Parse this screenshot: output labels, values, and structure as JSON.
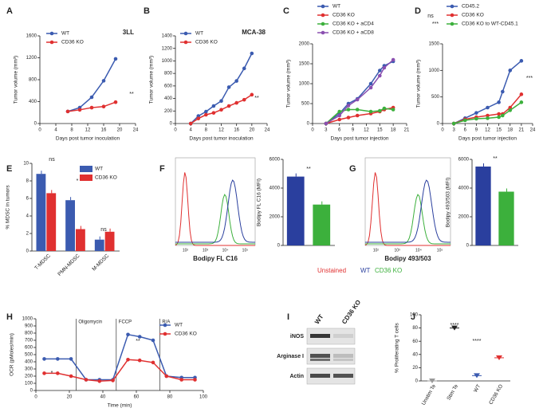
{
  "chart_data": [
    {
      "type": "line",
      "label": "A",
      "title": "3LL",
      "xlabel": "Days post tumor inoculation",
      "ylabel": "Tumor volume (mm³)",
      "x": [
        7,
        10,
        13,
        16,
        19
      ],
      "xlim": [
        0,
        24
      ],
      "xticks": [
        0,
        4,
        8,
        12,
        16,
        20,
        24
      ],
      "ylim": [
        0,
        1600
      ],
      "yticks": [
        0,
        400,
        800,
        1200,
        1600
      ],
      "series": [
        {
          "name": "WT",
          "color": "#3b5bb0",
          "values": [
            220,
            290,
            480,
            780,
            1180
          ]
        },
        {
          "name": "CD36 KO",
          "color": "#e03030",
          "values": [
            220,
            250,
            290,
            310,
            390
          ]
        }
      ],
      "annotations": [
        "**"
      ]
    },
    {
      "type": "line",
      "label": "B",
      "title": "MCA-38",
      "xlabel": "Days post tumor inoculation",
      "ylabel": "Tumor volume (mm³)",
      "x": [
        4,
        6,
        8,
        10,
        12,
        14,
        16,
        18,
        20
      ],
      "xlim": [
        0,
        24
      ],
      "xticks": [
        0,
        4,
        8,
        12,
        16,
        20,
        24
      ],
      "ylim": [
        0,
        1400
      ],
      "yticks": [
        0,
        200,
        400,
        600,
        800,
        1000,
        1200,
        1400
      ],
      "series": [
        {
          "name": "WT",
          "color": "#3b5bb0",
          "values": [
            0,
            120,
            190,
            280,
            360,
            580,
            680,
            880,
            1120
          ]
        },
        {
          "name": "CD36 KO",
          "color": "#e03030",
          "values": [
            0,
            80,
            140,
            170,
            220,
            280,
            330,
            380,
            460
          ]
        }
      ],
      "annotations": [
        "**"
      ]
    },
    {
      "type": "line",
      "label": "C",
      "xlabel": "Days post tumor injection",
      "ylabel": "Tumor volume (mm³)",
      "x": [
        3,
        6,
        8,
        10,
        13,
        15,
        16,
        18
      ],
      "xlim": [
        0,
        21
      ],
      "xticks": [
        0,
        3,
        6,
        9,
        12,
        15,
        18,
        21
      ],
      "ylim": [
        0,
        2000
      ],
      "yticks": [
        0,
        500,
        1000,
        1500,
        2000
      ],
      "series": [
        {
          "name": "WT",
          "color": "#3b5bb0",
          "values": [
            0,
            250,
            500,
            620,
            1000,
            1330,
            1450,
            1560
          ]
        },
        {
          "name": "CD36 KO",
          "color": "#e03030",
          "values": [
            0,
            100,
            150,
            200,
            250,
            300,
            350,
            400
          ]
        },
        {
          "name": "CD36 KO + aCD4",
          "color": "#3cb03c",
          "values": [
            0,
            300,
            350,
            350,
            300,
            320,
            380,
            350
          ]
        },
        {
          "name": "CD36 KO + aCD8",
          "color": "#8a4fb0",
          "values": [
            0,
            200,
            450,
            600,
            900,
            1200,
            1400,
            1600
          ]
        }
      ],
      "annotations": [
        "ns",
        "***"
      ]
    },
    {
      "type": "line",
      "label": "D",
      "xlabel": "Days post tumor injection",
      "ylabel": "Tumor volume (mm³)",
      "x": [
        3,
        6,
        9,
        12,
        15,
        16,
        18,
        21
      ],
      "xlim": [
        0,
        24
      ],
      "xticks": [
        0,
        3,
        6,
        9,
        12,
        15,
        18,
        21,
        24
      ],
      "ylim": [
        0,
        1500
      ],
      "yticks": [
        0,
        500,
        1000,
        1500
      ],
      "series": [
        {
          "name": "CD45.2",
          "color": "#3b5bb0",
          "values": [
            0,
            100,
            200,
            300,
            400,
            600,
            1000,
            1180
          ]
        },
        {
          "name": "CD36 KO",
          "color": "#e03030",
          "values": [
            0,
            80,
            120,
            150,
            180,
            180,
            300,
            550
          ]
        },
        {
          "name": "CD36 KO to WT-CD45.1",
          "color": "#3cb03c",
          "values": [
            0,
            60,
            90,
            100,
            120,
            150,
            250,
            400
          ]
        }
      ],
      "annotations": [
        "***"
      ]
    },
    {
      "type": "bar",
      "label": "E",
      "ylabel": "% MDSC in tumors",
      "categories": [
        "T-MDSC",
        "PMN-MDSC",
        "M-MDSC"
      ],
      "ylim": [
        0,
        10
      ],
      "yticks": [
        0,
        2,
        4,
        6,
        8,
        10
      ],
      "series": [
        {
          "name": "WT",
          "color": "#3b5bb0",
          "values": [
            8.8,
            5.8,
            1.3
          ]
        },
        {
          "name": "CD36 KO",
          "color": "#e03030",
          "values": [
            6.6,
            2.5,
            2.2
          ]
        }
      ],
      "annotations": [
        "ns",
        "*",
        "ns"
      ]
    },
    {
      "type": "flow",
      "label": "F",
      "xlabel": "Bodipy FL C16",
      "xticks": [
        "10²",
        "10³",
        "10⁴",
        "10⁵"
      ]
    },
    {
      "type": "bar",
      "ylabel": "Bodipy FL C16 (MFI)",
      "categories": [
        null,
        null
      ],
      "ylim": [
        0,
        6000
      ],
      "yticks": [
        0,
        2000,
        4000,
        6000
      ],
      "series": [
        {
          "colors": [
            "#2a3f9e",
            "#3cb03c"
          ],
          "values": [
            4800,
            2850
          ]
        }
      ],
      "annotations": [
        "**"
      ]
    },
    {
      "type": "flow",
      "label": "G",
      "xlabel": "Bodipy 493/503",
      "xticks": [
        "10²",
        "10³",
        "10⁴",
        "10⁵"
      ]
    },
    {
      "type": "bar",
      "ylabel": "Bodipy 493/503 (MFI)",
      "categories": [
        null,
        null
      ],
      "ylim": [
        0,
        6000
      ],
      "yticks": [
        0,
        2000,
        4000,
        6000
      ],
      "series": [
        {
          "colors": [
            "#2a3f9e",
            "#3cb03c"
          ],
          "values": [
            5500,
            3750
          ]
        }
      ],
      "annotations": [
        "**"
      ]
    },
    {
      "type": "line",
      "label": "H",
      "xlabel": "Time (min)",
      "ylabel": "OCR (pMoles/min)",
      "x": [
        5,
        13,
        21,
        30,
        38,
        46,
        55,
        62,
        70,
        78,
        87,
        95
      ],
      "xlim": [
        0,
        100
      ],
      "xticks": [
        0,
        20,
        40,
        60,
        80,
        100
      ],
      "ylim": [
        0,
        1000
      ],
      "yticks": [
        0,
        100,
        200,
        300,
        400,
        500,
        600,
        700,
        800,
        900,
        1000
      ],
      "series": [
        {
          "name": "WT",
          "color": "#3b5bb0",
          "values": [
            440,
            440,
            440,
            150,
            150,
            150,
            780,
            750,
            700,
            200,
            180,
            180
          ]
        },
        {
          "name": "CD36 KO",
          "color": "#e03030",
          "values": [
            240,
            240,
            200,
            150,
            130,
            140,
            430,
            420,
            390,
            200,
            150,
            150
          ]
        }
      ],
      "injections": [
        {
          "label": "Oligomycin",
          "x": 24
        },
        {
          "label": "FCCP",
          "x": 48
        },
        {
          "label": "R/A",
          "x": 74
        }
      ],
      "annotations": [
        "*",
        "**"
      ]
    },
    {
      "type": "blot",
      "label": "I",
      "lanes": [
        "WT",
        "CD36 KO"
      ],
      "rows": [
        "iNOS",
        "Arginase I",
        "Actin"
      ]
    },
    {
      "type": "dot",
      "label": "J",
      "ylabel": "% Proliferating T cells",
      "categories": [
        "Unstim Te",
        "Stim Te",
        "WT",
        "CD36 KO"
      ],
      "values": [
        0,
        80,
        8,
        35
      ],
      "colors": [
        "#999999",
        "#222222",
        "#3b5bb0",
        "#e03030"
      ],
      "ylim": [
        0,
        100
      ],
      "yticks": [
        0,
        20,
        40,
        60,
        80,
        100
      ],
      "annotations": [
        "****",
        "****"
      ]
    }
  ],
  "flow_legend": [
    {
      "name": "Unstained",
      "color": "#e03030"
    },
    {
      "name": "WT",
      "color": "#2a3f9e"
    },
    {
      "name": "CD36 KO",
      "color": "#3cb03c"
    }
  ]
}
